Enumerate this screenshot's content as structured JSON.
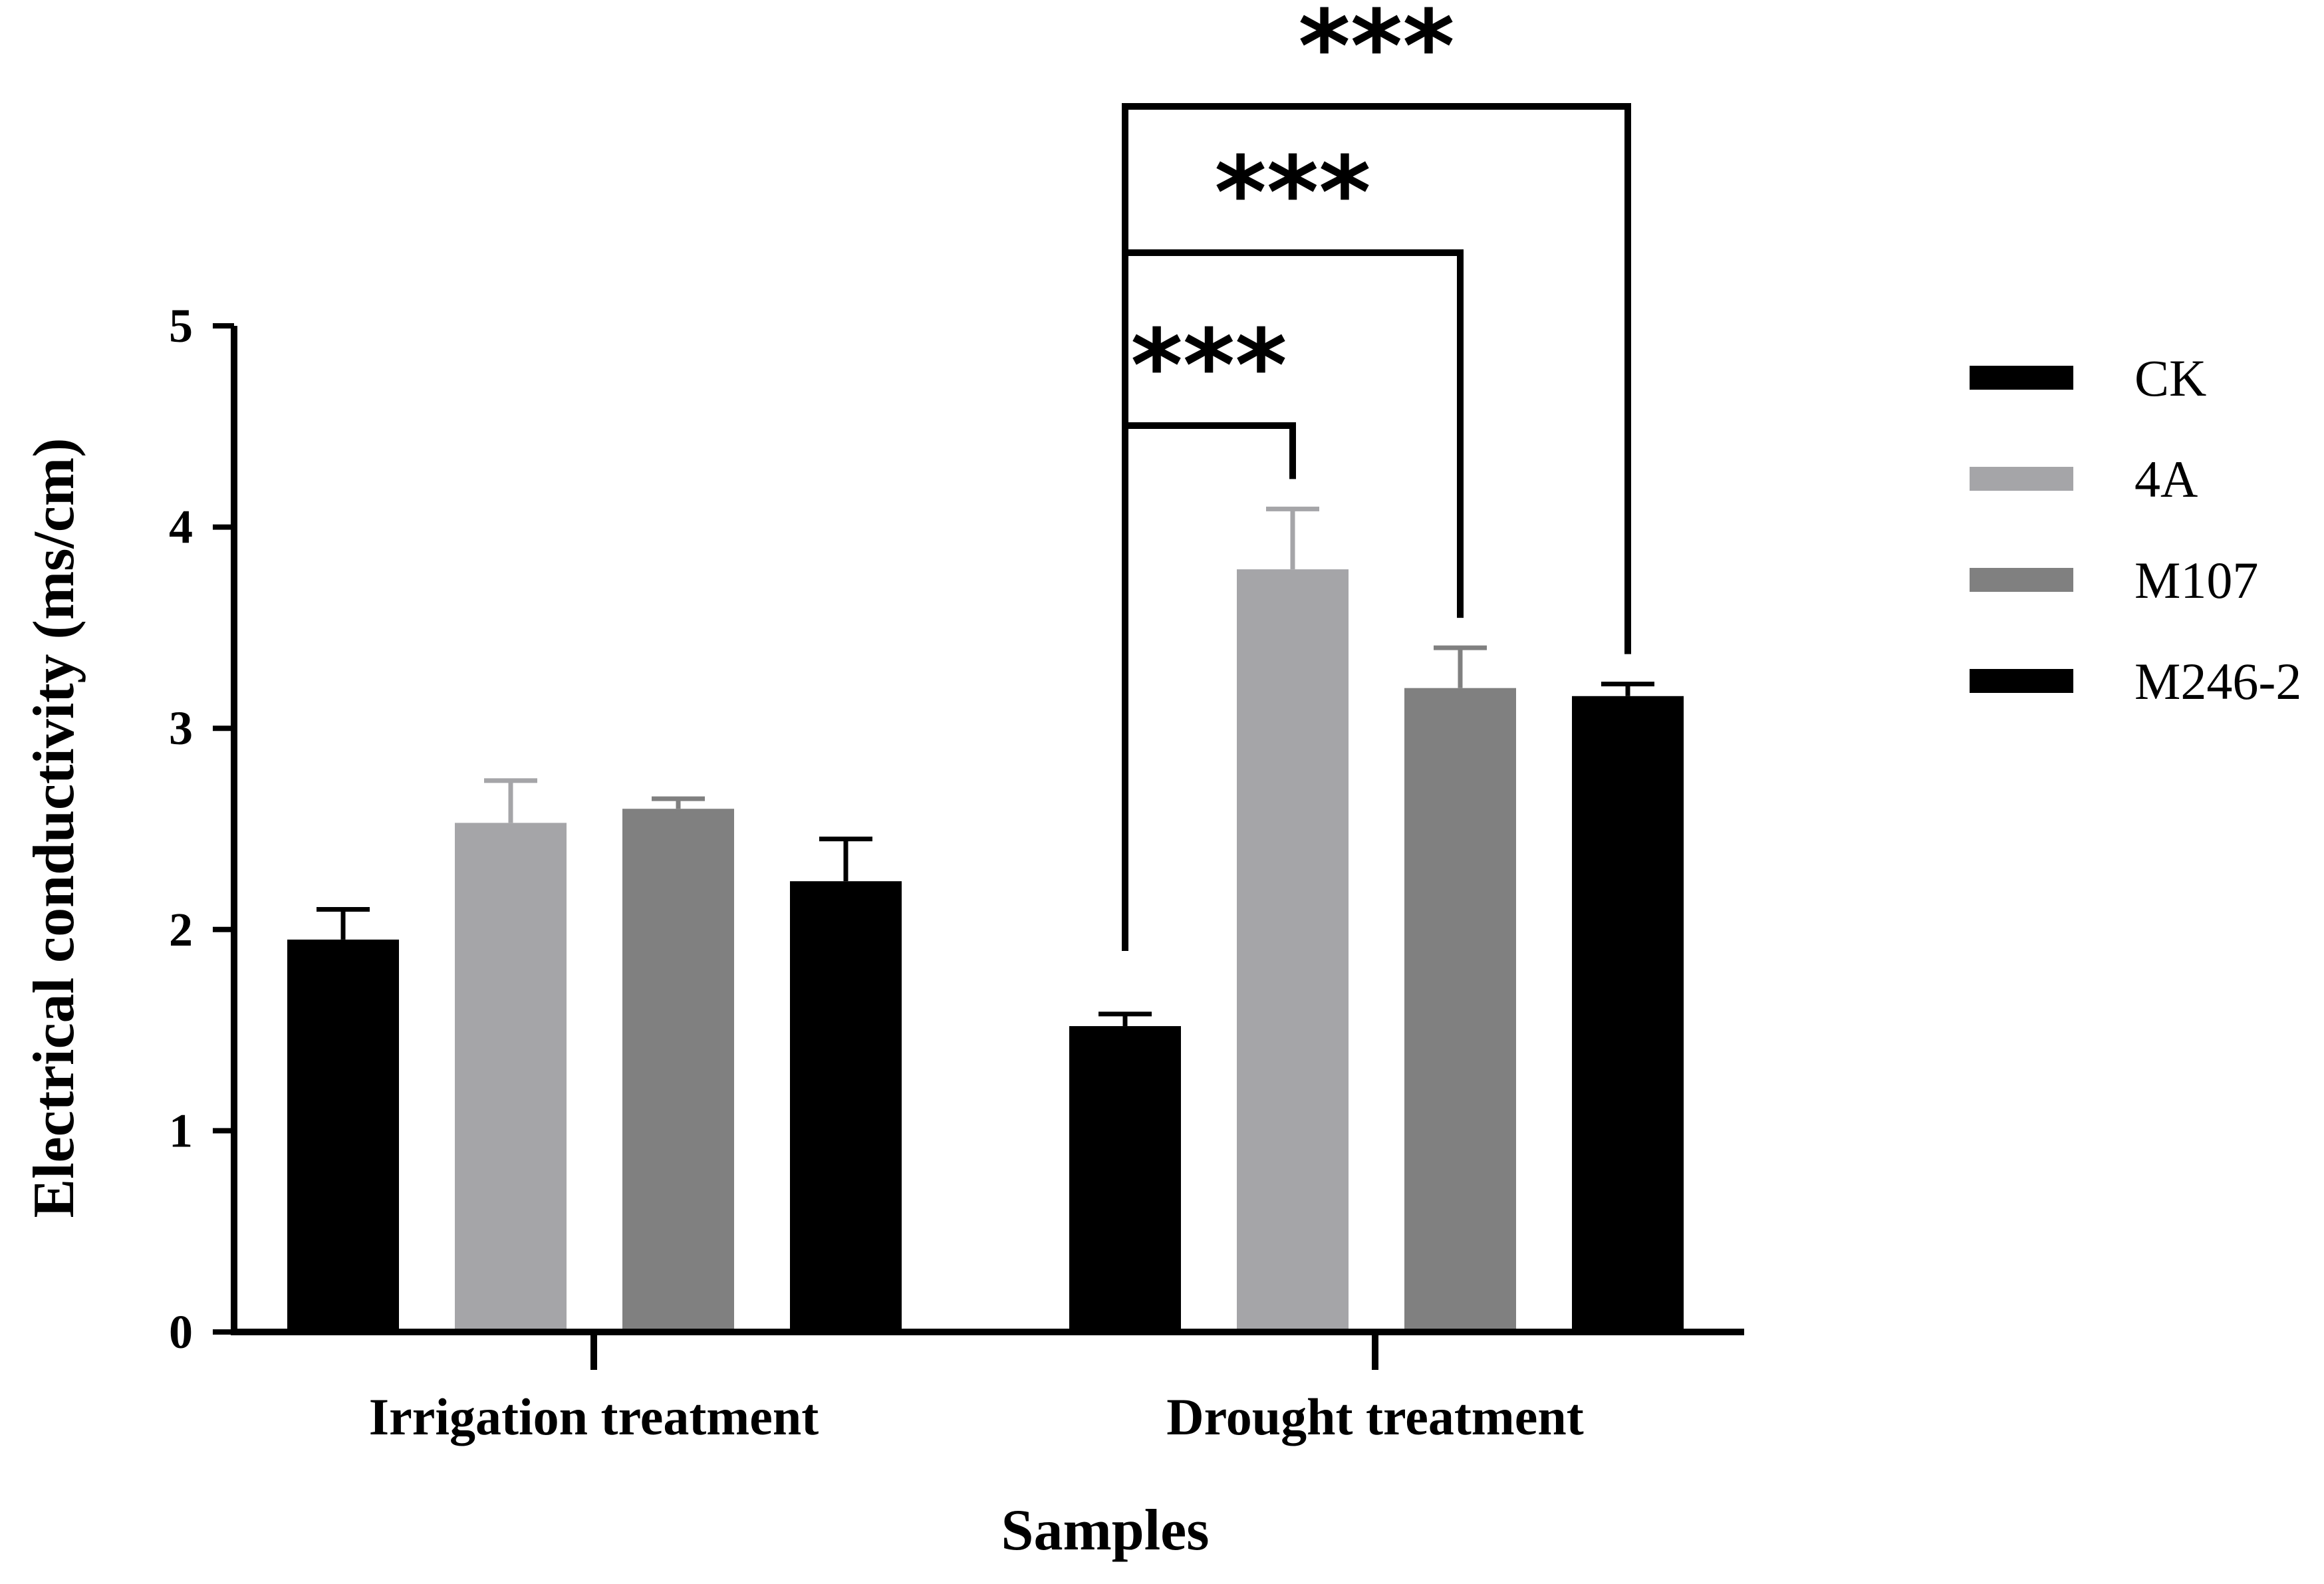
{
  "chart_data": {
    "type": "bar",
    "title": "",
    "xlabel": "Samples",
    "ylabel": "Electrical conductivity (ms/cm)",
    "ylim": [
      0,
      5
    ],
    "yticks": [
      "0",
      "1",
      "2",
      "3",
      "4",
      "5"
    ],
    "categories": [
      "Irrigation treatment",
      "Drought treatment"
    ],
    "series": [
      {
        "name": "CK",
        "color": "#000000",
        "values": [
          1.95,
          1.52
        ],
        "errors": [
          0.15,
          0.06
        ]
      },
      {
        "name": "4A",
        "color": "#a5a5a8",
        "values": [
          2.53,
          3.79
        ],
        "errors": [
          0.21,
          0.3
        ]
      },
      {
        "name": "M107",
        "color": "#808080",
        "values": [
          2.6,
          3.2
        ],
        "errors": [
          0.05,
          0.2
        ]
      },
      {
        "name": "M246-2",
        "color": "#000000",
        "values": [
          2.24,
          3.16
        ],
        "errors": [
          0.21,
          0.06
        ]
      }
    ],
    "legend_position": "right",
    "significance": [
      {
        "category": "Drought treatment",
        "from": "CK",
        "to": "4A",
        "label": "***"
      },
      {
        "category": "Drought treatment",
        "from": "CK",
        "to": "M107",
        "label": "***"
      },
      {
        "category": "Drought treatment",
        "from": "CK",
        "to": "M246-2",
        "label": "***"
      }
    ]
  }
}
